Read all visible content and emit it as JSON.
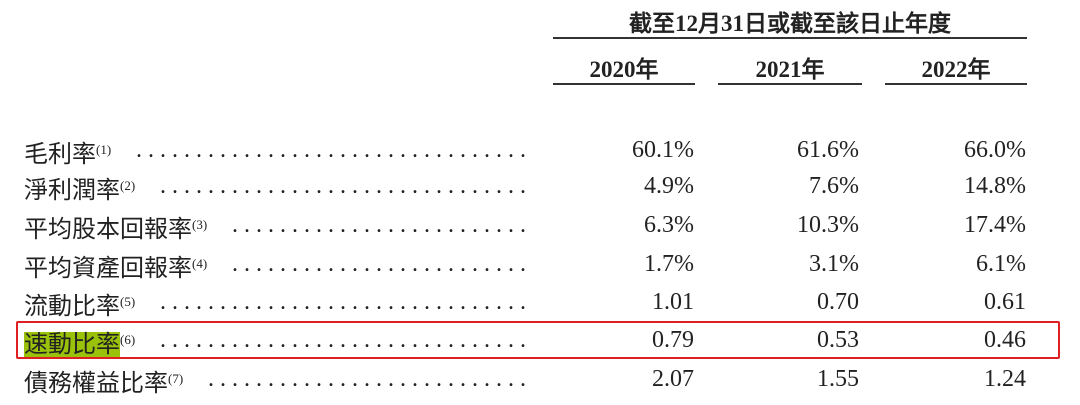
{
  "header": {
    "period_title": "截至12月31日或截至該日止年度",
    "years": [
      "2020年",
      "2021年",
      "2022年"
    ]
  },
  "rows": [
    {
      "label": "毛利率",
      "note": "(1)",
      "values": [
        "60.1%",
        "61.6%",
        "66.0%"
      ]
    },
    {
      "label": "淨利潤率",
      "note": "(2)",
      "values": [
        "4.9%",
        "7.6%",
        "14.8%"
      ]
    },
    {
      "label": "平均股本回報率",
      "note": "(3)",
      "values": [
        "6.3%",
        "10.3%",
        "17.4%"
      ]
    },
    {
      "label": "平均資產回報率",
      "note": "(4)",
      "values": [
        "1.7%",
        "3.1%",
        "6.1%"
      ]
    },
    {
      "label": "流動比率",
      "note": "(5)",
      "values": [
        "1.01",
        "0.70",
        "0.61"
      ]
    },
    {
      "label": "速動比率",
      "note": "(6)",
      "values": [
        "0.79",
        "0.53",
        "0.46"
      ],
      "highlighted": true
    },
    {
      "label": "債務權益比率",
      "note": "(7)",
      "values": [
        "2.07",
        "1.55",
        "1.24"
      ]
    }
  ],
  "colors": {
    "highlight": "#9ac20a",
    "annotation_box": "#e02020"
  },
  "dots": "........................................................"
}
